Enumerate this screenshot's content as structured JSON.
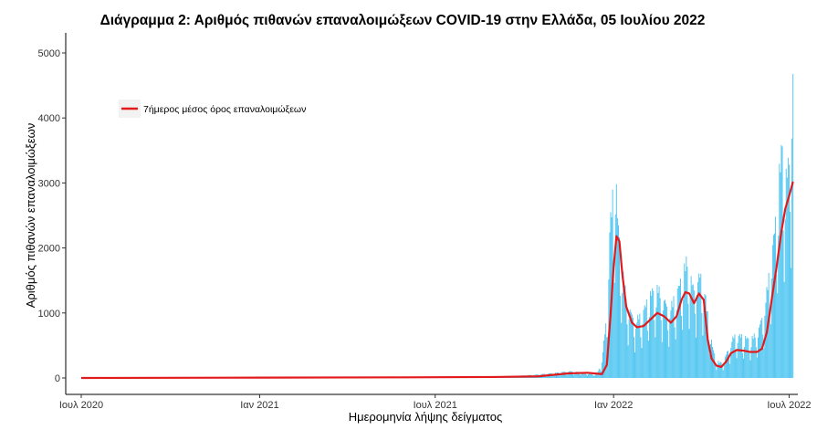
{
  "chart_data": {
    "type": "bar",
    "title": "Διάγραμμα 2: Αριθμός πιθανών επαναλοιμώξεων COVID-19 στην Ελλάδα, 05 Ιουλίου 2022",
    "xlabel": "Ημερομηνία λήψης δείγματος",
    "ylabel": "Αριθμός πιθανών επαναλοιμώξεων",
    "ylim": [
      0,
      5200
    ],
    "yticks": [
      0,
      1000,
      2000,
      3000,
      4000,
      5000
    ],
    "x_range": [
      "2020-06-15",
      "2022-07-10"
    ],
    "x_ticks": [
      {
        "date": "2020-07-01",
        "label": "Ιουλ 2020"
      },
      {
        "date": "2021-01-01",
        "label": "Ιαν 2021"
      },
      {
        "date": "2021-07-01",
        "label": "Ιουλ 2021"
      },
      {
        "date": "2022-01-01",
        "label": "Ιαν 2022"
      },
      {
        "date": "2022-07-01",
        "label": "Ιουλ 2022"
      }
    ],
    "grid": false,
    "legend": {
      "position": "top-left",
      "entries": [
        "7ήμερος μέσος όρος επαναλοιμώξεων"
      ]
    },
    "series": [
      {
        "kind": "bars",
        "color": "#3fc0ef",
        "description": "daily counts (envelope of daily bars)",
        "points": [
          [
            "2021-09-01",
            20
          ],
          [
            "2021-10-01",
            40
          ],
          [
            "2021-11-01",
            80
          ],
          [
            "2021-11-15",
            110
          ],
          [
            "2021-12-01",
            90
          ],
          [
            "2021-12-15",
            60
          ],
          [
            "2021-12-20",
            300
          ],
          [
            "2021-12-25",
            1000
          ],
          [
            "2021-12-28",
            2400
          ],
          [
            "2021-12-31",
            2900
          ],
          [
            "2022-01-03",
            3430
          ],
          [
            "2022-01-05",
            2600
          ],
          [
            "2022-01-08",
            2050
          ],
          [
            "2022-01-12",
            1500
          ],
          [
            "2022-01-16",
            1200
          ],
          [
            "2022-01-20",
            1000
          ],
          [
            "2022-01-24",
            950
          ],
          [
            "2022-01-28",
            1000
          ],
          [
            "2022-02-01",
            1100
          ],
          [
            "2022-02-05",
            1250
          ],
          [
            "2022-02-10",
            1400
          ],
          [
            "2022-02-15",
            1450
          ],
          [
            "2022-02-20",
            1350
          ],
          [
            "2022-02-25",
            1150
          ],
          [
            "2022-03-01",
            1150
          ],
          [
            "2022-03-05",
            1300
          ],
          [
            "2022-03-10",
            1500
          ],
          [
            "2022-03-14",
            1700
          ],
          [
            "2022-03-17",
            1880
          ],
          [
            "2022-03-20",
            1750
          ],
          [
            "2022-03-24",
            1450
          ],
          [
            "2022-03-28",
            1600
          ],
          [
            "2022-04-01",
            1650
          ],
          [
            "2022-04-05",
            1400
          ],
          [
            "2022-04-09",
            900
          ],
          [
            "2022-04-13",
            500
          ],
          [
            "2022-04-17",
            280
          ],
          [
            "2022-04-21",
            250
          ],
          [
            "2022-04-25",
            300
          ],
          [
            "2022-04-29",
            450
          ],
          [
            "2022-05-03",
            620
          ],
          [
            "2022-05-07",
            700
          ],
          [
            "2022-05-12",
            680
          ],
          [
            "2022-05-17",
            650
          ],
          [
            "2022-05-22",
            620
          ],
          [
            "2022-05-27",
            700
          ],
          [
            "2022-06-01",
            850
          ],
          [
            "2022-06-05",
            1100
          ],
          [
            "2022-06-09",
            1500
          ],
          [
            "2022-06-13",
            2000
          ],
          [
            "2022-06-17",
            2500
          ],
          [
            "2022-06-21",
            3300
          ],
          [
            "2022-06-24",
            3780
          ],
          [
            "2022-06-27",
            3200
          ],
          [
            "2022-06-30",
            3400
          ],
          [
            "2022-07-03",
            4200
          ],
          [
            "2022-07-05",
            5050
          ]
        ]
      },
      {
        "kind": "line",
        "name": "7ήμερος μέσος όρος επαναλοιμώξεων",
        "color": "#e31a1c",
        "points": [
          [
            "2020-07-01",
            0
          ],
          [
            "2021-01-01",
            5
          ],
          [
            "2021-06-01",
            10
          ],
          [
            "2021-09-01",
            15
          ],
          [
            "2021-10-15",
            25
          ],
          [
            "2021-11-15",
            70
          ],
          [
            "2021-12-05",
            80
          ],
          [
            "2021-12-20",
            60
          ],
          [
            "2021-12-25",
            200
          ],
          [
            "2021-12-29",
            1000
          ],
          [
            "2022-01-01",
            1700
          ],
          [
            "2022-01-04",
            2180
          ],
          [
            "2022-01-07",
            2100
          ],
          [
            "2022-01-10",
            1600
          ],
          [
            "2022-01-14",
            1100
          ],
          [
            "2022-01-20",
            850
          ],
          [
            "2022-01-25",
            780
          ],
          [
            "2022-02-01",
            800
          ],
          [
            "2022-02-08",
            900
          ],
          [
            "2022-02-15",
            1000
          ],
          [
            "2022-02-22",
            950
          ],
          [
            "2022-03-01",
            850
          ],
          [
            "2022-03-07",
            950
          ],
          [
            "2022-03-12",
            1200
          ],
          [
            "2022-03-16",
            1320
          ],
          [
            "2022-03-20",
            1300
          ],
          [
            "2022-03-25",
            1150
          ],
          [
            "2022-03-30",
            1300
          ],
          [
            "2022-04-04",
            1200
          ],
          [
            "2022-04-08",
            600
          ],
          [
            "2022-04-12",
            300
          ],
          [
            "2022-04-17",
            190
          ],
          [
            "2022-04-22",
            170
          ],
          [
            "2022-04-27",
            250
          ],
          [
            "2022-05-02",
            380
          ],
          [
            "2022-05-08",
            430
          ],
          [
            "2022-05-15",
            420
          ],
          [
            "2022-05-22",
            400
          ],
          [
            "2022-05-29",
            400
          ],
          [
            "2022-06-03",
            450
          ],
          [
            "2022-06-08",
            700
          ],
          [
            "2022-06-13",
            1200
          ],
          [
            "2022-06-18",
            1700
          ],
          [
            "2022-06-23",
            2250
          ],
          [
            "2022-06-27",
            2600
          ],
          [
            "2022-07-01",
            2800
          ],
          [
            "2022-07-05",
            3020
          ]
        ]
      }
    ]
  }
}
